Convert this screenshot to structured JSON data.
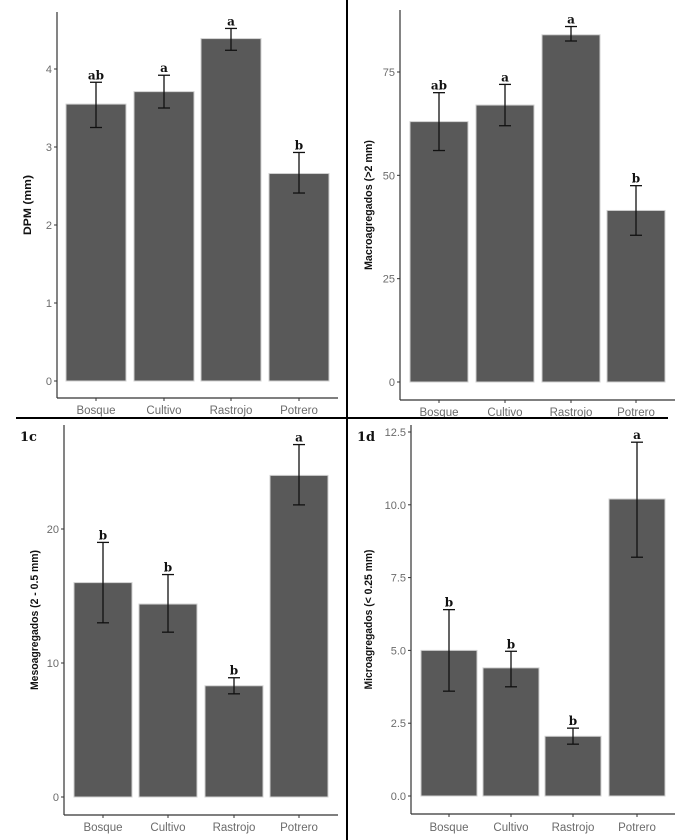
{
  "chart_data": [
    {
      "type": "bar",
      "panel_label": "",
      "categories": [
        "Bosque",
        "Cultivo",
        "Rastrojo",
        "Potrero"
      ],
      "values": [
        3.55,
        3.71,
        4.39,
        2.66
      ],
      "error_low": [
        3.25,
        3.5,
        4.24,
        2.41
      ],
      "error_high": [
        3.83,
        3.92,
        4.52,
        2.93
      ],
      "significance": [
        "ab",
        "a",
        "a",
        "b"
      ],
      "ylabel": "DPM (mm)",
      "yticks": [
        "0",
        "1",
        "2",
        "3",
        "4"
      ],
      "ytick_values": [
        0,
        1,
        2,
        3,
        4
      ],
      "ylim": [
        -0.2,
        4.75
      ]
    },
    {
      "type": "bar",
      "panel_label": "",
      "categories": [
        "Bosque",
        "Cultivo",
        "Rastrojo",
        "Potrero"
      ],
      "values": [
        63,
        67,
        84,
        41.5
      ],
      "error_low": [
        56,
        62,
        82.5,
        35.5
      ],
      "error_high": [
        70,
        72,
        86,
        47.5
      ],
      "significance": [
        "ab",
        "a",
        "a",
        "b"
      ],
      "ylabel": "Macroagregados (>2 mm)",
      "yticks": [
        "0",
        "25",
        "50",
        "75"
      ],
      "ytick_values": [
        0,
        25,
        50,
        75
      ],
      "ylim": [
        -4,
        90
      ]
    },
    {
      "type": "bar",
      "panel_label": "1c",
      "categories": [
        "Bosque",
        "Cultivo",
        "Rastrojo",
        "Potrero"
      ],
      "values": [
        16.0,
        14.4,
        8.3,
        24.0
      ],
      "error_low": [
        13.0,
        12.3,
        7.7,
        21.8
      ],
      "error_high": [
        19.0,
        16.6,
        8.9,
        26.3
      ],
      "significance": [
        "b",
        "b",
        "b",
        "a"
      ],
      "ylabel": "Mesoagregados (2 - 0.5 mm)",
      "yticks": [
        "0",
        "10",
        "20"
      ],
      "ytick_values": [
        0,
        10,
        20
      ],
      "ylim": [
        -1.3,
        27.8
      ]
    },
    {
      "type": "bar",
      "panel_label": "1d",
      "categories": [
        "Bosque",
        "Cultivo",
        "Rastrojo",
        "Potrero"
      ],
      "values": [
        5.0,
        4.4,
        2.05,
        10.2
      ],
      "error_low": [
        3.6,
        3.75,
        1.78,
        8.2
      ],
      "error_high": [
        6.4,
        4.97,
        2.33,
        12.15
      ],
      "significance": [
        "b",
        "b",
        "b",
        "a"
      ],
      "ylabel": "Microagregados (< 0.25 mm)",
      "yticks": [
        "0.0",
        "2.5",
        "5.0",
        "7.5",
        "10.0",
        "12.5"
      ],
      "ytick_values": [
        0,
        2.5,
        5,
        7.5,
        10,
        12.5
      ],
      "ylim": [
        -0.6,
        12.7
      ]
    }
  ],
  "colors": {
    "bar": "#595959",
    "bar_edge": "#d0d0d0",
    "axis": "#333333",
    "divider": "#000000"
  }
}
